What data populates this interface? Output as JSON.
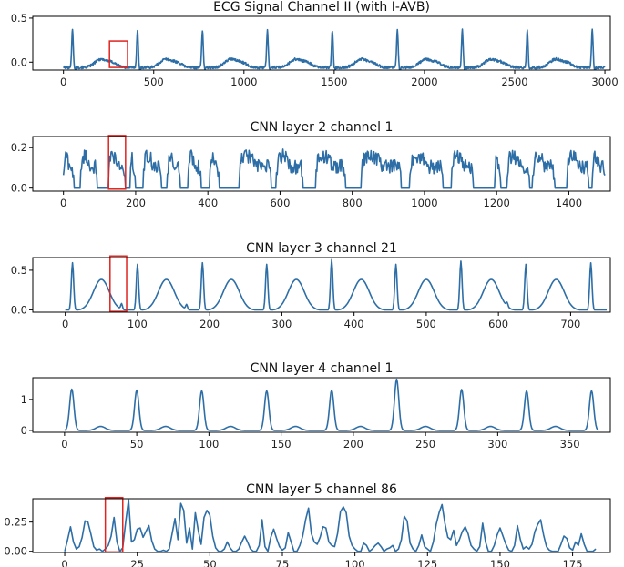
{
  "chart_data": [
    {
      "type": "line",
      "title": "ECG Signal Channel II (with I-AVB)",
      "xlim": [
        -170,
        3030
      ],
      "ylim": [
        -0.09,
        0.52
      ],
      "xticks": [
        0,
        500,
        1000,
        1500,
        2000,
        2500,
        3000
      ],
      "yticks": [
        0.0,
        0.5
      ],
      "ytick_labels": [
        "0.0",
        "0.5"
      ],
      "highlight": {
        "x": [
          255,
          355
        ],
        "y": [
          -0.06,
          0.24
        ]
      },
      "series_color": "#2e6ea6",
      "highlight_color": "#e0241f",
      "x_end": 3000,
      "peaks": [
        50,
        410,
        770,
        1130,
        1490,
        1850,
        2210,
        2570,
        2930
      ],
      "peak_height": 0.42
    },
    {
      "type": "line",
      "title": "CNN layer 2 channel 1",
      "xlim": [
        -85,
        1515
      ],
      "ylim": [
        -0.015,
        0.255
      ],
      "xticks": [
        0,
        200,
        400,
        600,
        800,
        1000,
        1200,
        1400
      ],
      "yticks": [
        0.0,
        0.2
      ],
      "ytick_labels": [
        "0.0",
        "0.2"
      ],
      "highlight": {
        "x": [
          125,
          172
        ],
        "y": [
          -0.005,
          0.26
        ]
      },
      "series_color": "#2e6ea6",
      "highlight_color": "#e0241f",
      "segments": [
        [
          0,
          28
        ],
        [
          48,
          92
        ],
        [
          125,
          170
        ],
        [
          185,
          198
        ],
        [
          222,
          270
        ],
        [
          288,
          322
        ],
        [
          345,
          380
        ],
        [
          405,
          430
        ],
        [
          487,
          575
        ],
        [
          590,
          662
        ],
        [
          700,
          780
        ],
        [
          825,
          935
        ],
        [
          960,
          1050
        ],
        [
          1075,
          1135
        ],
        [
          1195,
          1210
        ],
        [
          1230,
          1290
        ],
        [
          1300,
          1360
        ],
        [
          1395,
          1455
        ],
        [
          1465,
          1500
        ]
      ]
    },
    {
      "type": "line",
      "title": "CNN layer 3 channel 21",
      "xlim": [
        -45,
        755
      ],
      "ylim": [
        -0.03,
        0.66
      ],
      "xticks": [
        0,
        100,
        200,
        300,
        400,
        500,
        600,
        700
      ],
      "yticks": [
        0.0,
        0.5
      ],
      "ytick_labels": [
        "0.0",
        "0.5"
      ],
      "highlight": {
        "x": [
          62,
          85
        ],
        "y": [
          -0.02,
          0.68
        ]
      },
      "series_color": "#2e6ea6",
      "highlight_color": "#e0241f",
      "x_end": 750,
      "peaks": [
        10,
        100,
        190,
        279,
        369,
        458,
        548,
        638,
        728
      ],
      "peak_heights": [
        0.6,
        0.58,
        0.6,
        0.58,
        0.64,
        0.58,
        0.62,
        0.58,
        0.6
      ],
      "humps": [
        50,
        140,
        230,
        320,
        410,
        500,
        590,
        680
      ],
      "hump_height": 0.39
    },
    {
      "type": "line",
      "title": "CNN layer 4 channel 1",
      "xlim": [
        -22,
        378
      ],
      "ylim": [
        -0.06,
        1.7
      ],
      "xticks": [
        0,
        50,
        100,
        150,
        200,
        250,
        300,
        350
      ],
      "yticks": [
        0,
        1
      ],
      "ytick_labels": [
        "0",
        "1"
      ],
      "series_color": "#2e6ea6",
      "x_end": 370,
      "peaks": [
        5,
        50,
        95,
        140,
        185,
        230,
        275,
        320,
        365
      ],
      "peak_heights": [
        1.33,
        1.3,
        1.28,
        1.28,
        1.3,
        1.65,
        1.32,
        1.28,
        1.28
      ],
      "humps": [
        25,
        70,
        115,
        160,
        205,
        250,
        295,
        340
      ],
      "hump_height": 0.13
    },
    {
      "type": "line",
      "title": "CNN layer 5 channel 86",
      "xlim": [
        -11,
        188
      ],
      "ylim": [
        -0.01,
        0.45
      ],
      "xticks": [
        0,
        25,
        50,
        75,
        100,
        125,
        150,
        175
      ],
      "yticks": [
        0.0,
        0.25
      ],
      "ytick_labels": [
        "0.00",
        "0.25"
      ],
      "highlight": {
        "x": [
          14,
          20
        ],
        "y": [
          -0.005,
          0.46
        ]
      },
      "series_color": "#2e6ea6",
      "highlight_color": "#e0241f",
      "points": [
        [
          0,
          0
        ],
        [
          1,
          0.1
        ],
        [
          2,
          0.21
        ],
        [
          3,
          0.08
        ],
        [
          4,
          0.02
        ],
        [
          5,
          0.04
        ],
        [
          6,
          0.12
        ],
        [
          7,
          0.26
        ],
        [
          8,
          0.25
        ],
        [
          9,
          0.15
        ],
        [
          10,
          0.04
        ],
        [
          11,
          0.01
        ],
        [
          12,
          0.02
        ],
        [
          13,
          0.0
        ],
        [
          14,
          0.02
        ],
        [
          15,
          0.05
        ],
        [
          16,
          0.13
        ],
        [
          17,
          0.29
        ],
        [
          18,
          0.08
        ],
        [
          19,
          0.0
        ],
        [
          20,
          0.03
        ],
        [
          21,
          0.25
        ],
        [
          22,
          0.44
        ],
        [
          23,
          0.08
        ],
        [
          24,
          0.1
        ],
        [
          25,
          0.19
        ],
        [
          26,
          0.2
        ],
        [
          27,
          0.12
        ],
        [
          28,
          0.17
        ],
        [
          29,
          0.22
        ],
        [
          30,
          0.09
        ],
        [
          31,
          0.02
        ],
        [
          32,
          0.0
        ],
        [
          33,
          0.0
        ],
        [
          34,
          0.01
        ],
        [
          35,
          0.0
        ],
        [
          36,
          0.02
        ],
        [
          37,
          0.15
        ],
        [
          38,
          0.28
        ],
        [
          39,
          0.1
        ],
        [
          40,
          0.41
        ],
        [
          41,
          0.35
        ],
        [
          42,
          0.07
        ],
        [
          43,
          0.2
        ],
        [
          44,
          0.02
        ],
        [
          45,
          0.33
        ],
        [
          46,
          0.18
        ],
        [
          47,
          0.06
        ],
        [
          48,
          0.29
        ],
        [
          49,
          0.35
        ],
        [
          50,
          0.31
        ],
        [
          51,
          0.13
        ],
        [
          52,
          0.03
        ],
        [
          53,
          0.0
        ],
        [
          54,
          0.0
        ],
        [
          55,
          0.02
        ],
        [
          56,
          0.08
        ],
        [
          57,
          0.03
        ],
        [
          58,
          0.0
        ],
        [
          59,
          0.0
        ],
        [
          60,
          0.02
        ],
        [
          61,
          0.08
        ],
        [
          62,
          0.13
        ],
        [
          63,
          0.08
        ],
        [
          64,
          0.02
        ],
        [
          65,
          0.0
        ],
        [
          66,
          0.0
        ],
        [
          67,
          0.05
        ],
        [
          68,
          0.27
        ],
        [
          69,
          0.04
        ],
        [
          70,
          0.0
        ],
        [
          71,
          0.12
        ],
        [
          72,
          0.19
        ],
        [
          73,
          0.11
        ],
        [
          74,
          0.04
        ],
        [
          75,
          0.01
        ],
        [
          76,
          0.03
        ],
        [
          77,
          0.16
        ],
        [
          78,
          0.08
        ],
        [
          79,
          0.0
        ],
        [
          80,
          0.0
        ],
        [
          81,
          0.05
        ],
        [
          82,
          0.13
        ],
        [
          83,
          0.27
        ],
        [
          84,
          0.37
        ],
        [
          85,
          0.15
        ],
        [
          86,
          0.08
        ],
        [
          87,
          0.06
        ],
        [
          88,
          0.12
        ],
        [
          89,
          0.21
        ],
        [
          90,
          0.2
        ],
        [
          91,
          0.08
        ],
        [
          92,
          0.05
        ],
        [
          93,
          0.04
        ],
        [
          94,
          0.15
        ],
        [
          95,
          0.34
        ],
        [
          96,
          0.38
        ],
        [
          97,
          0.33
        ],
        [
          98,
          0.13
        ],
        [
          99,
          0.05
        ],
        [
          100,
          0.02
        ],
        [
          101,
          0.0
        ],
        [
          102,
          0.0
        ],
        [
          103,
          0.07
        ],
        [
          104,
          0.05
        ],
        [
          105,
          0.0
        ],
        [
          106,
          0.02
        ],
        [
          107,
          0.05
        ],
        [
          108,
          0.07
        ],
        [
          109,
          0.04
        ],
        [
          110,
          0.0
        ],
        [
          111,
          0.02
        ],
        [
          112,
          0.03
        ],
        [
          113,
          0.05
        ],
        [
          114,
          0.0
        ],
        [
          115,
          0.02
        ],
        [
          116,
          0.1
        ],
        [
          117,
          0.3
        ],
        [
          118,
          0.26
        ],
        [
          119,
          0.07
        ],
        [
          120,
          0.02
        ],
        [
          121,
          0.0
        ],
        [
          122,
          0.05
        ],
        [
          123,
          0.14
        ],
        [
          124,
          0.04
        ],
        [
          125,
          0.02
        ],
        [
          126,
          0.0
        ],
        [
          127,
          0.08
        ],
        [
          128,
          0.23
        ],
        [
          129,
          0.33
        ],
        [
          130,
          0.4
        ],
        [
          131,
          0.24
        ],
        [
          132,
          0.12
        ],
        [
          133,
          0.1
        ],
        [
          134,
          0.18
        ],
        [
          135,
          0.05
        ],
        [
          136,
          0.1
        ],
        [
          137,
          0.17
        ],
        [
          138,
          0.21
        ],
        [
          139,
          0.15
        ],
        [
          140,
          0.05
        ],
        [
          141,
          0.02
        ],
        [
          142,
          0.0
        ],
        [
          143,
          0.04
        ],
        [
          144,
          0.24
        ],
        [
          145,
          0.08
        ],
        [
          146,
          0.0
        ],
        [
          147,
          0.0
        ],
        [
          148,
          0.05
        ],
        [
          149,
          0.14
        ],
        [
          150,
          0.2
        ],
        [
          151,
          0.13
        ],
        [
          152,
          0.06
        ],
        [
          153,
          0.01
        ],
        [
          154,
          0.0
        ],
        [
          155,
          0.05
        ],
        [
          156,
          0.22
        ],
        [
          157,
          0.1
        ],
        [
          158,
          0.02
        ],
        [
          159,
          0.04
        ],
        [
          160,
          0.02
        ],
        [
          161,
          0.06
        ],
        [
          162,
          0.17
        ],
        [
          163,
          0.23
        ],
        [
          164,
          0.27
        ],
        [
          165,
          0.14
        ],
        [
          166,
          0.04
        ],
        [
          167,
          0.01
        ],
        [
          168,
          0.0
        ],
        [
          169,
          0.0
        ],
        [
          170,
          0.0
        ],
        [
          171,
          0.06
        ],
        [
          172,
          0.13
        ],
        [
          173,
          0.11
        ],
        [
          174,
          0.03
        ],
        [
          175,
          0.01
        ],
        [
          176,
          0.08
        ],
        [
          177,
          0.05
        ],
        [
          178,
          0.15
        ],
        [
          179,
          0.06
        ],
        [
          180,
          0.0
        ],
        [
          181,
          0.0
        ],
        [
          182,
          0.0
        ],
        [
          183,
          0.02
        ]
      ]
    }
  ]
}
